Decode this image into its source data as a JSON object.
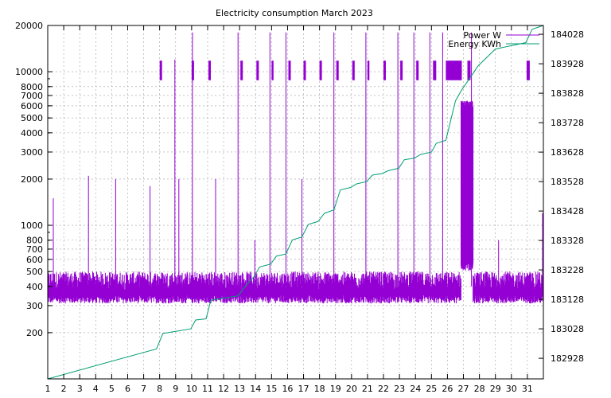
{
  "chart_data": {
    "type": "line",
    "title": "Electricity consumption March 2023",
    "xlabel": "",
    "ylabel": "",
    "y2label": "",
    "grid": true,
    "legend_position": "top-right",
    "x_ticks": [
      "1",
      "2",
      "3",
      "4",
      "5",
      "6",
      "7",
      "8",
      "9",
      "10",
      "11",
      "12",
      "13",
      "14",
      "15",
      "16",
      "17",
      "18",
      "19",
      "20",
      "21",
      "22",
      "23",
      "24",
      "25",
      "26",
      "27",
      "28",
      "29",
      "30",
      "31"
    ],
    "xlim": [
      1,
      32
    ],
    "y_log": true,
    "ylim": [
      100,
      20000
    ],
    "y_ticks": [
      {
        "value": 200,
        "label": "200"
      },
      {
        "value": 300,
        "label": "300"
      },
      {
        "value": 400,
        "label": "400"
      },
      {
        "value": 500,
        "label": "500"
      },
      {
        "value": 600,
        "label": "600"
      },
      {
        "value": 700,
        "label": "700"
      },
      {
        "value": 800,
        "label": "800"
      },
      {
        "value": 1000,
        "label": "1000"
      },
      {
        "value": 2000,
        "label": "2000"
      },
      {
        "value": 3000,
        "label": "3000"
      },
      {
        "value": 4000,
        "label": "4000"
      },
      {
        "value": 5000,
        "label": "5000"
      },
      {
        "value": 6000,
        "label": "6000"
      },
      {
        "value": 7000,
        "label": "7000"
      },
      {
        "value": 8000,
        "label": "8000"
      },
      {
        "value": 10000,
        "label": "10000"
      },
      {
        "value": 20000,
        "label": "20000"
      }
    ],
    "y2lim": [
      182858,
      184058
    ],
    "y2_ticks": [
      {
        "value": 182928,
        "label": "182928"
      },
      {
        "value": 183028,
        "label": "183028"
      },
      {
        "value": 183128,
        "label": "183128"
      },
      {
        "value": 183228,
        "label": "183228"
      },
      {
        "value": 183328,
        "label": "183328"
      },
      {
        "value": 183428,
        "label": "183428"
      },
      {
        "value": 183528,
        "label": "183528"
      },
      {
        "value": 183628,
        "label": "183628"
      },
      {
        "value": 183728,
        "label": "183728"
      },
      {
        "value": 183828,
        "label": "183828"
      },
      {
        "value": 183928,
        "label": "183928"
      },
      {
        "value": 184028,
        "label": "184028"
      }
    ],
    "series": [
      {
        "name": "Power W",
        "color": "#9400d3",
        "axis": "y",
        "baseline_band": [
          310,
          440
        ],
        "spike_ranges": [
          {
            "x0": 8.0,
            "x1": 8.15,
            "low": 8800,
            "high": 11800
          },
          {
            "x0": 10.0,
            "x1": 10.15,
            "low": 8800,
            "high": 11800
          },
          {
            "x0": 11.05,
            "x1": 11.2,
            "low": 8800,
            "high": 11800
          },
          {
            "x0": 13.05,
            "x1": 13.2,
            "low": 8800,
            "high": 11800
          },
          {
            "x0": 14.05,
            "x1": 14.2,
            "low": 8800,
            "high": 11800
          },
          {
            "x0": 15.0,
            "x1": 15.12,
            "low": 8800,
            "high": 11800
          },
          {
            "x0": 16.05,
            "x1": 16.2,
            "low": 8800,
            "high": 11800
          },
          {
            "x0": 17.0,
            "x1": 17.15,
            "low": 8800,
            "high": 11800
          },
          {
            "x0": 18.0,
            "x1": 18.15,
            "low": 8800,
            "high": 11800
          },
          {
            "x0": 19.05,
            "x1": 19.2,
            "low": 8800,
            "high": 11800
          },
          {
            "x0": 20.05,
            "x1": 20.2,
            "low": 8800,
            "high": 11800
          },
          {
            "x0": 21.0,
            "x1": 21.12,
            "low": 8800,
            "high": 11800
          },
          {
            "x0": 22.0,
            "x1": 22.15,
            "low": 8800,
            "high": 11800
          },
          {
            "x0": 23.05,
            "x1": 23.2,
            "low": 8800,
            "high": 11800
          },
          {
            "x0": 24.05,
            "x1": 24.2,
            "low": 8800,
            "high": 11800
          },
          {
            "x0": 25.1,
            "x1": 25.3,
            "low": 8800,
            "high": 11800
          },
          {
            "x0": 25.9,
            "x1": 26.9,
            "low": 8800,
            "high": 11800
          },
          {
            "x0": 27.25,
            "x1": 27.45,
            "low": 8800,
            "high": 11800
          },
          {
            "x0": 30.95,
            "x1": 31.15,
            "low": 8800,
            "high": 11800
          }
        ],
        "peaks": [
          {
            "x": 1.35,
            "y": 1500
          },
          {
            "x": 3.55,
            "y": 2100
          },
          {
            "x": 5.25,
            "y": 2000
          },
          {
            "x": 7.4,
            "y": 1800
          },
          {
            "x": 8.95,
            "y": 12000
          },
          {
            "x": 9.2,
            "y": 2000
          },
          {
            "x": 10.05,
            "y": 18000
          },
          {
            "x": 11.5,
            "y": 2000
          },
          {
            "x": 12.9,
            "y": 18000
          },
          {
            "x": 13.95,
            "y": 800
          },
          {
            "x": 14.9,
            "y": 18000
          },
          {
            "x": 15.9,
            "y": 18000
          },
          {
            "x": 16.9,
            "y": 2000
          },
          {
            "x": 18.9,
            "y": 18000
          },
          {
            "x": 20.9,
            "y": 18000
          },
          {
            "x": 22.9,
            "y": 18000
          },
          {
            "x": 23.9,
            "y": 18000
          },
          {
            "x": 24.9,
            "y": 18000
          },
          {
            "x": 25.7,
            "y": 18000
          },
          {
            "x": 27.5,
            "y": 18000
          },
          {
            "x": 29.2,
            "y": 800
          },
          {
            "x": 31.95,
            "y": 1200
          }
        ],
        "high_region": {
          "x0": 26.85,
          "x1": 27.6,
          "low": 500,
          "high": 6500
        }
      },
      {
        "name": "Energy KWh",
        "color": "#009e73",
        "axis": "y2",
        "points": [
          [
            1.0,
            182858
          ],
          [
            7.8,
            182960
          ],
          [
            8.2,
            183012
          ],
          [
            9.95,
            183028
          ],
          [
            10.25,
            183058
          ],
          [
            10.9,
            183062
          ],
          [
            11.2,
            183125
          ],
          [
            12.9,
            183140
          ],
          [
            13.4,
            183175
          ],
          [
            13.9,
            183205
          ],
          [
            14.25,
            183238
          ],
          [
            14.95,
            183248
          ],
          [
            15.3,
            183275
          ],
          [
            15.9,
            183282
          ],
          [
            16.3,
            183330
          ],
          [
            16.9,
            183340
          ],
          [
            17.3,
            183383
          ],
          [
            17.9,
            183392
          ],
          [
            18.3,
            183420
          ],
          [
            18.9,
            183432
          ],
          [
            19.3,
            183500
          ],
          [
            19.95,
            183508
          ],
          [
            20.3,
            183520
          ],
          [
            20.95,
            183528
          ],
          [
            21.3,
            183550
          ],
          [
            21.9,
            183555
          ],
          [
            22.3,
            183565
          ],
          [
            22.95,
            183573
          ],
          [
            23.3,
            183602
          ],
          [
            23.95,
            183608
          ],
          [
            24.3,
            183620
          ],
          [
            25.0,
            183628
          ],
          [
            25.3,
            183658
          ],
          [
            25.9,
            183668
          ],
          [
            26.5,
            183802
          ],
          [
            26.9,
            183840
          ],
          [
            27.6,
            183895
          ],
          [
            27.9,
            183920
          ],
          [
            29.0,
            183978
          ],
          [
            30.9,
            184000
          ],
          [
            31.3,
            184045
          ],
          [
            32.0,
            184058
          ]
        ]
      }
    ]
  }
}
